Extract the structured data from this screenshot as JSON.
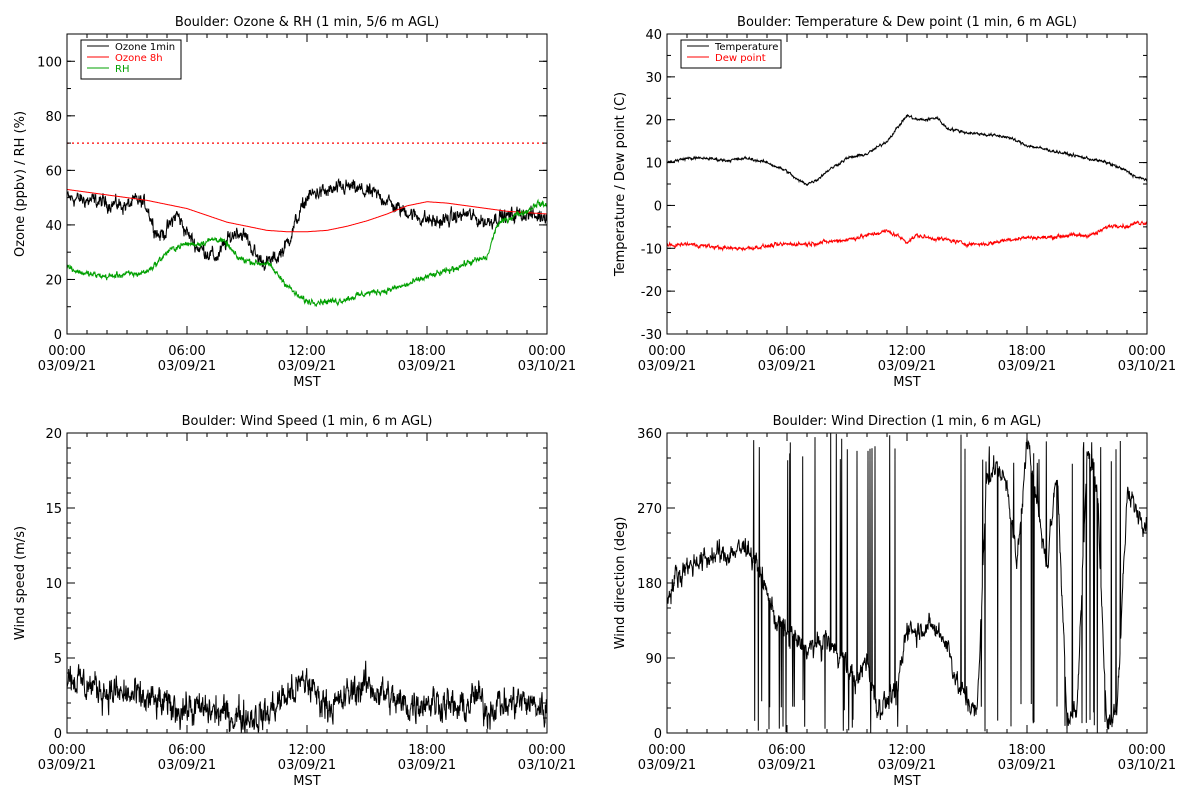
{
  "chart_data": [
    {
      "type": "line",
      "title": "Boulder: Ozone & RH (1 min, 5/6 m AGL)",
      "ylabel": "Ozone (ppbv) / RH (%)",
      "xlabel": "",
      "ylim": [
        0,
        110
      ],
      "yticks": [
        0,
        20,
        40,
        60,
        80,
        100
      ],
      "y_minor_step": 10,
      "xticks": [
        {
          "t": 0,
          "time": "00:00",
          "date": "03/09/21"
        },
        {
          "t": 6,
          "time": "06:00",
          "date": "03/09/21"
        },
        {
          "t": 12,
          "time": "12:00",
          "date": "03/09/21"
        },
        {
          "t": 18,
          "time": "18:00",
          "date": "03/09/21"
        },
        {
          "t": 24,
          "time": "00:00",
          "date": "03/10/21"
        }
      ],
      "legend": "top-left",
      "reference_lines": [
        {
          "y": 70,
          "color": "#ff0000",
          "style": "dotted"
        }
      ],
      "series": [
        {
          "name": "Ozone 1min",
          "color": "#000000",
          "noise": 2.5,
          "x": [
            0,
            1,
            2,
            3,
            3.5,
            4,
            4.3,
            4.6,
            5,
            5.3,
            5.5,
            6,
            6.5,
            7,
            7.5,
            8,
            8.5,
            9,
            9.5,
            10,
            10.5,
            11,
            11.5,
            12,
            12.5,
            13,
            13.5,
            14,
            14.5,
            15,
            15.5,
            16,
            16.5,
            17,
            17.5,
            18,
            18.5,
            19,
            19.5,
            20,
            20.5,
            21,
            21.5,
            22,
            22.5,
            23,
            23.5,
            24
          ],
          "values": [
            50,
            49,
            48,
            47,
            49,
            47,
            40,
            36,
            38,
            42,
            44,
            37,
            32,
            30,
            28,
            34,
            38,
            35,
            28,
            26,
            28,
            33,
            42,
            50,
            52,
            52,
            53,
            54,
            53,
            52,
            51,
            49,
            46,
            45,
            43,
            42,
            41,
            42,
            43,
            44,
            42,
            41,
            43,
            43,
            44,
            44,
            43,
            44
          ]
        },
        {
          "name": "Ozone 8h",
          "color": "#ff0000",
          "noise": 0,
          "x": [
            0,
            2,
            4,
            6,
            8,
            10,
            11,
            12,
            13,
            14,
            15,
            16,
            17,
            18,
            19,
            20,
            21,
            22,
            23,
            24
          ],
          "values": [
            53,
            51,
            49,
            46,
            41,
            38,
            37.5,
            37.5,
            38,
            39.5,
            41.5,
            44,
            47,
            48.5,
            48,
            47,
            46,
            45,
            44.5,
            44
          ]
        },
        {
          "name": "RH",
          "color": "#00a000",
          "noise": 1.0,
          "x": [
            0,
            0.5,
            1,
            2,
            3,
            3.5,
            4,
            4.5,
            5,
            5.5,
            6,
            6.5,
            7,
            7.5,
            8,
            8.5,
            9,
            9.5,
            10,
            10.5,
            11,
            11.5,
            12,
            12.5,
            13,
            13.5,
            14,
            14.5,
            15,
            16,
            17,
            18,
            19,
            20,
            20.5,
            21,
            21.5,
            22,
            22.5,
            23,
            23.5,
            24
          ],
          "values": [
            25,
            23,
            22,
            21,
            22,
            22,
            23,
            26,
            30,
            32,
            33,
            33,
            34,
            35,
            33,
            28,
            27,
            26,
            26,
            22,
            18,
            14,
            12,
            12,
            12,
            12,
            13,
            14,
            15,
            16,
            18,
            21,
            23,
            26,
            27,
            28,
            40,
            42,
            44,
            45,
            48,
            47
          ]
        }
      ]
    },
    {
      "type": "line",
      "title": "Boulder: Temperature & Dew point (1 min, 6 m AGL)",
      "ylabel": "Temperature / Dew point (C)",
      "xlabel": "",
      "ylim": [
        -30,
        40
      ],
      "yticks": [
        -30,
        -20,
        -10,
        0,
        10,
        20,
        30,
        40
      ],
      "y_minor_step": 5,
      "xticks": [
        {
          "t": 0,
          "time": "00:00",
          "date": "03/09/21"
        },
        {
          "t": 6,
          "time": "06:00",
          "date": "03/09/21"
        },
        {
          "t": 12,
          "time": "12:00",
          "date": "03/09/21"
        },
        {
          "t": 18,
          "time": "18:00",
          "date": "03/09/21"
        },
        {
          "t": 24,
          "time": "00:00",
          "date": "03/10/21"
        }
      ],
      "legend": "top-left",
      "reference_lines": [],
      "series": [
        {
          "name": "Temperature",
          "color": "#000000",
          "noise": 0.3,
          "x": [
            0,
            1,
            2,
            3,
            4,
            5,
            5.5,
            6,
            6.5,
            7,
            7.5,
            8,
            9,
            10,
            11,
            11.5,
            12,
            12.5,
            13,
            13.5,
            14,
            15,
            16,
            17,
            18,
            19,
            20,
            21,
            22,
            23,
            23.5,
            24
          ],
          "values": [
            10,
            11,
            11,
            10.5,
            11,
            10,
            9,
            8,
            6,
            5,
            6,
            8,
            11,
            12,
            15,
            18,
            21,
            20,
            20,
            20.5,
            18,
            17,
            16.5,
            16,
            14,
            13,
            12,
            11,
            10,
            8,
            6.5,
            6
          ]
        },
        {
          "name": "Dew point",
          "color": "#ff0000",
          "noise": 0.4,
          "x": [
            0,
            1,
            2,
            3,
            4,
            5,
            6,
            7,
            8,
            9,
            10,
            11,
            11.5,
            12,
            12.5,
            13,
            14,
            15,
            16,
            17,
            18,
            19,
            20,
            20.5,
            21,
            21.5,
            22,
            22.5,
            23,
            23.5,
            24
          ],
          "values": [
            -9.5,
            -9,
            -9.5,
            -10,
            -10,
            -9.5,
            -9,
            -9,
            -8.5,
            -8,
            -7,
            -6,
            -7,
            -8.5,
            -7,
            -7.5,
            -8,
            -9,
            -9,
            -8,
            -7.5,
            -7.5,
            -7,
            -7,
            -7,
            -6.5,
            -5,
            -4.5,
            -5,
            -4,
            -4
          ]
        }
      ]
    },
    {
      "type": "line",
      "title": "Boulder: Wind Speed (1 min, 6 m AGL)",
      "ylabel": "Wind speed (m/s)",
      "xlabel": "MST",
      "ylim": [
        0,
        20
      ],
      "yticks": [
        0,
        5,
        10,
        15,
        20
      ],
      "y_minor_step": 1,
      "xticks": [
        {
          "t": 0,
          "time": "00:00",
          "date": "03/09/21"
        },
        {
          "t": 6,
          "time": "06:00",
          "date": "03/09/21"
        },
        {
          "t": 12,
          "time": "12:00",
          "date": "03/09/21"
        },
        {
          "t": 18,
          "time": "18:00",
          "date": "03/09/21"
        },
        {
          "t": 24,
          "time": "00:00",
          "date": "03/10/21"
        }
      ],
      "legend": "none",
      "reference_lines": [],
      "series": [
        {
          "color": "#000000",
          "noise": 1.0,
          "floor": 0,
          "x": [
            0,
            0.5,
            1,
            2,
            3,
            4,
            5,
            6,
            7,
            8,
            9,
            10,
            10.5,
            11,
            11.5,
            12,
            12.5,
            13,
            13.5,
            14,
            14.5,
            15,
            15.5,
            16,
            16.5,
            17,
            17.5,
            18,
            18.5,
            19,
            19.5,
            20,
            20.5,
            21,
            21.5,
            22,
            22.5,
            23,
            23.5,
            24
          ],
          "values": [
            4,
            3.5,
            3.2,
            2.8,
            2.5,
            2.2,
            1.8,
            1.6,
            1.5,
            1.2,
            1.1,
            1.2,
            2,
            2.5,
            3,
            3.5,
            2.5,
            2,
            1.8,
            2.5,
            3,
            3.2,
            2.8,
            2.5,
            2,
            1.8,
            2,
            2.2,
            2,
            2,
            1.5,
            1.8,
            2.5,
            1.5,
            2,
            1.8,
            2.2,
            2,
            1.8,
            1.5
          ]
        }
      ]
    },
    {
      "type": "line",
      "title": "Boulder: Wind Direction (1 min, 6 m AGL)",
      "ylabel": "Wind direction (deg)",
      "xlabel": "MST",
      "ylim": [
        0,
        360
      ],
      "yticks": [
        0,
        90,
        180,
        270,
        360
      ],
      "y_minor_step": 30,
      "xticks": [
        {
          "t": 0,
          "time": "00:00",
          "date": "03/09/21"
        },
        {
          "t": 6,
          "time": "06:00",
          "date": "03/09/21"
        },
        {
          "t": 12,
          "time": "12:00",
          "date": "03/09/21"
        },
        {
          "t": 18,
          "time": "18:00",
          "date": "03/09/21"
        },
        {
          "t": 24,
          "time": "00:00",
          "date": "03/10/21"
        }
      ],
      "legend": "none",
      "reference_lines": [],
      "series": [
        {
          "color": "#000000",
          "noise": 12,
          "wrap": [
            0,
            360
          ],
          "x": [
            0,
            0.5,
            1,
            1.5,
            2,
            3,
            4,
            4.5,
            5,
            5.5,
            6,
            6.5,
            7,
            7.5,
            8,
            8.5,
            9,
            9.5,
            10,
            10.5,
            11,
            11.5,
            12,
            12.5,
            13,
            13.5,
            14,
            14.5,
            15,
            15.5,
            16,
            16.5,
            17,
            17.5,
            18,
            18.5,
            19,
            19.5,
            20,
            20.5,
            21,
            21.5,
            22,
            22.5,
            23,
            23.5,
            24
          ],
          "values": [
            160,
            190,
            200,
            205,
            210,
            215,
            225,
            200,
            170,
            130,
            120,
            110,
            100,
            105,
            110,
            100,
            80,
            60,
            90,
            30,
            40,
            40,
            130,
            120,
            130,
            120,
            110,
            60,
            40,
            20,
            310,
            320,
            300,
            200,
            350,
            280,
            200,
            320,
            20,
            30,
            330,
            300,
            0,
            30,
            280,
            270,
            250
          ],
          "jump_prob": [
            0,
            0,
            0,
            0,
            0,
            0,
            0,
            0.2,
            0.35,
            0.35,
            0.4,
            0.35,
            0.35,
            0.35,
            0.35,
            0.4,
            0.4,
            0.45,
            0.3,
            0.25,
            0.2,
            0.1,
            0.05,
            0.05,
            0.05,
            0.05,
            0.1,
            0.15,
            0.3,
            0.4,
            0.45,
            0.45,
            0.45,
            0.45,
            0.5,
            0.55,
            0.55,
            0.55,
            0.55,
            0.55,
            0.5,
            0.4,
            0.35,
            0.3,
            0.1,
            0.05,
            0.05
          ]
        }
      ]
    }
  ]
}
